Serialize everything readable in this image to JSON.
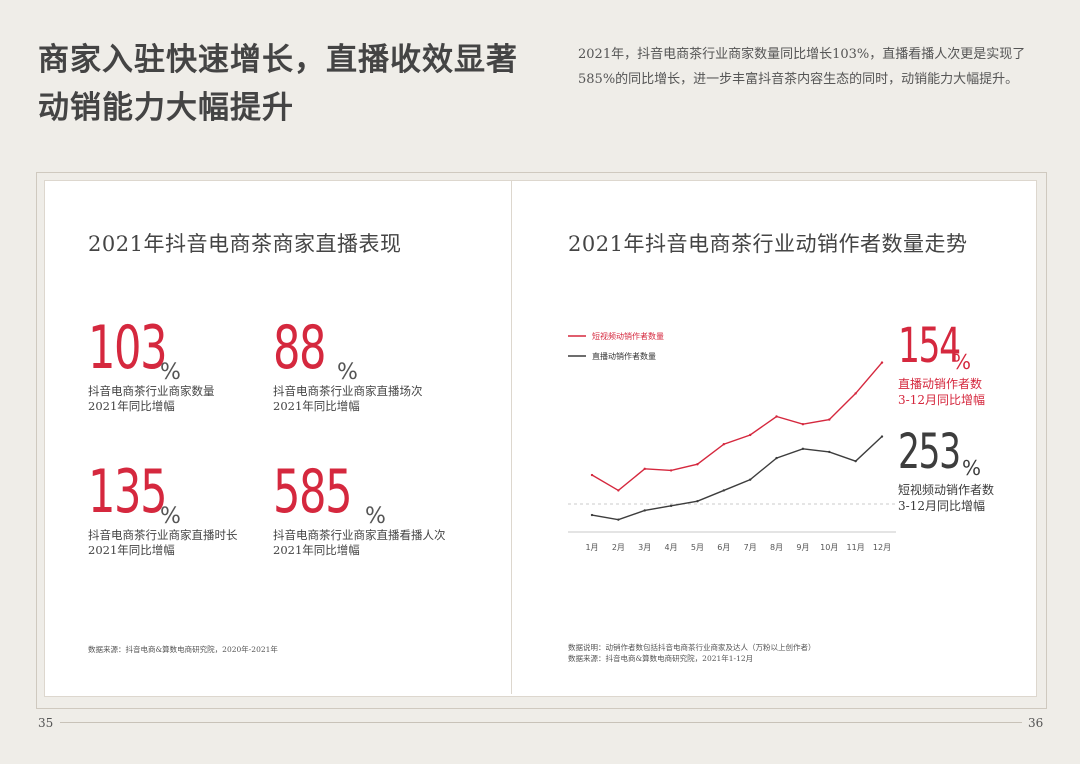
{
  "headline": "商家入驻快速增长，直播收效显著动销能力大幅提升",
  "intro": "2021年，抖音电商茶行业商家数量同比增长103%，直播看播人次更是实现了585%的同比增长，进一步丰富抖音茶内容生态的同时，动销能力大幅提升。",
  "left": {
    "title": "2021年抖音电商茶商家直播表现",
    "stats": [
      {
        "value": "103",
        "unit": "%",
        "label1": "抖音电商茶行业商家数量",
        "label2": "2021年同比增幅"
      },
      {
        "value": "88",
        "unit": "%",
        "label1": "抖音电商茶行业商家直播场次",
        "label2": "2021年同比增幅"
      },
      {
        "value": "135",
        "unit": "%",
        "label1": "抖音电商茶行业商家直播时长",
        "label2": "2021年同比增幅"
      },
      {
        "value": "585",
        "unit": "%",
        "label1": "抖音电商茶行业商家直播看播人次",
        "label2": "2021年同比增幅"
      }
    ],
    "source": "数据来源：抖音电商&算数电商研究院，2020年-2021年"
  },
  "right": {
    "title": "2021年抖音电商茶行业动销作者数量走势",
    "big1": {
      "value": "154",
      "unit": "%",
      "label1": "直播动销作者数",
      "label2": "3-12月同比增幅"
    },
    "big2": {
      "value": "253",
      "unit": "%",
      "label1": "短视频动销作者数",
      "label2": "3-12月同比增幅"
    },
    "note": "数据说明：动销作者数包括抖音电商茶行业商家及达人（万粉以上创作者）",
    "source": "数据来源：抖音电商&算数电商研究院，2021年1-12月"
  },
  "chart_data": {
    "type": "line",
    "title": "2021年抖音电商茶行业动销作者数量走势",
    "categories": [
      "1月",
      "2月",
      "3月",
      "4月",
      "5月",
      "6月",
      "7月",
      "8月",
      "9月",
      "10月",
      "11月",
      "12月"
    ],
    "ylim": [
      0,
      100
    ],
    "legend_position": "top-left",
    "series": [
      {
        "name": "短视频动销作者数量",
        "color": "#d5283e",
        "values": [
          37,
          27,
          41,
          40,
          44,
          57,
          63,
          75,
          70,
          73,
          90,
          110
        ]
      },
      {
        "name": "直播动销作者数量",
        "color": "#3d3d3d",
        "values": [
          11,
          8,
          14,
          17,
          20,
          27,
          34,
          48,
          54,
          52,
          46,
          62
        ]
      }
    ]
  },
  "pages": {
    "left": "35",
    "right": "36"
  }
}
